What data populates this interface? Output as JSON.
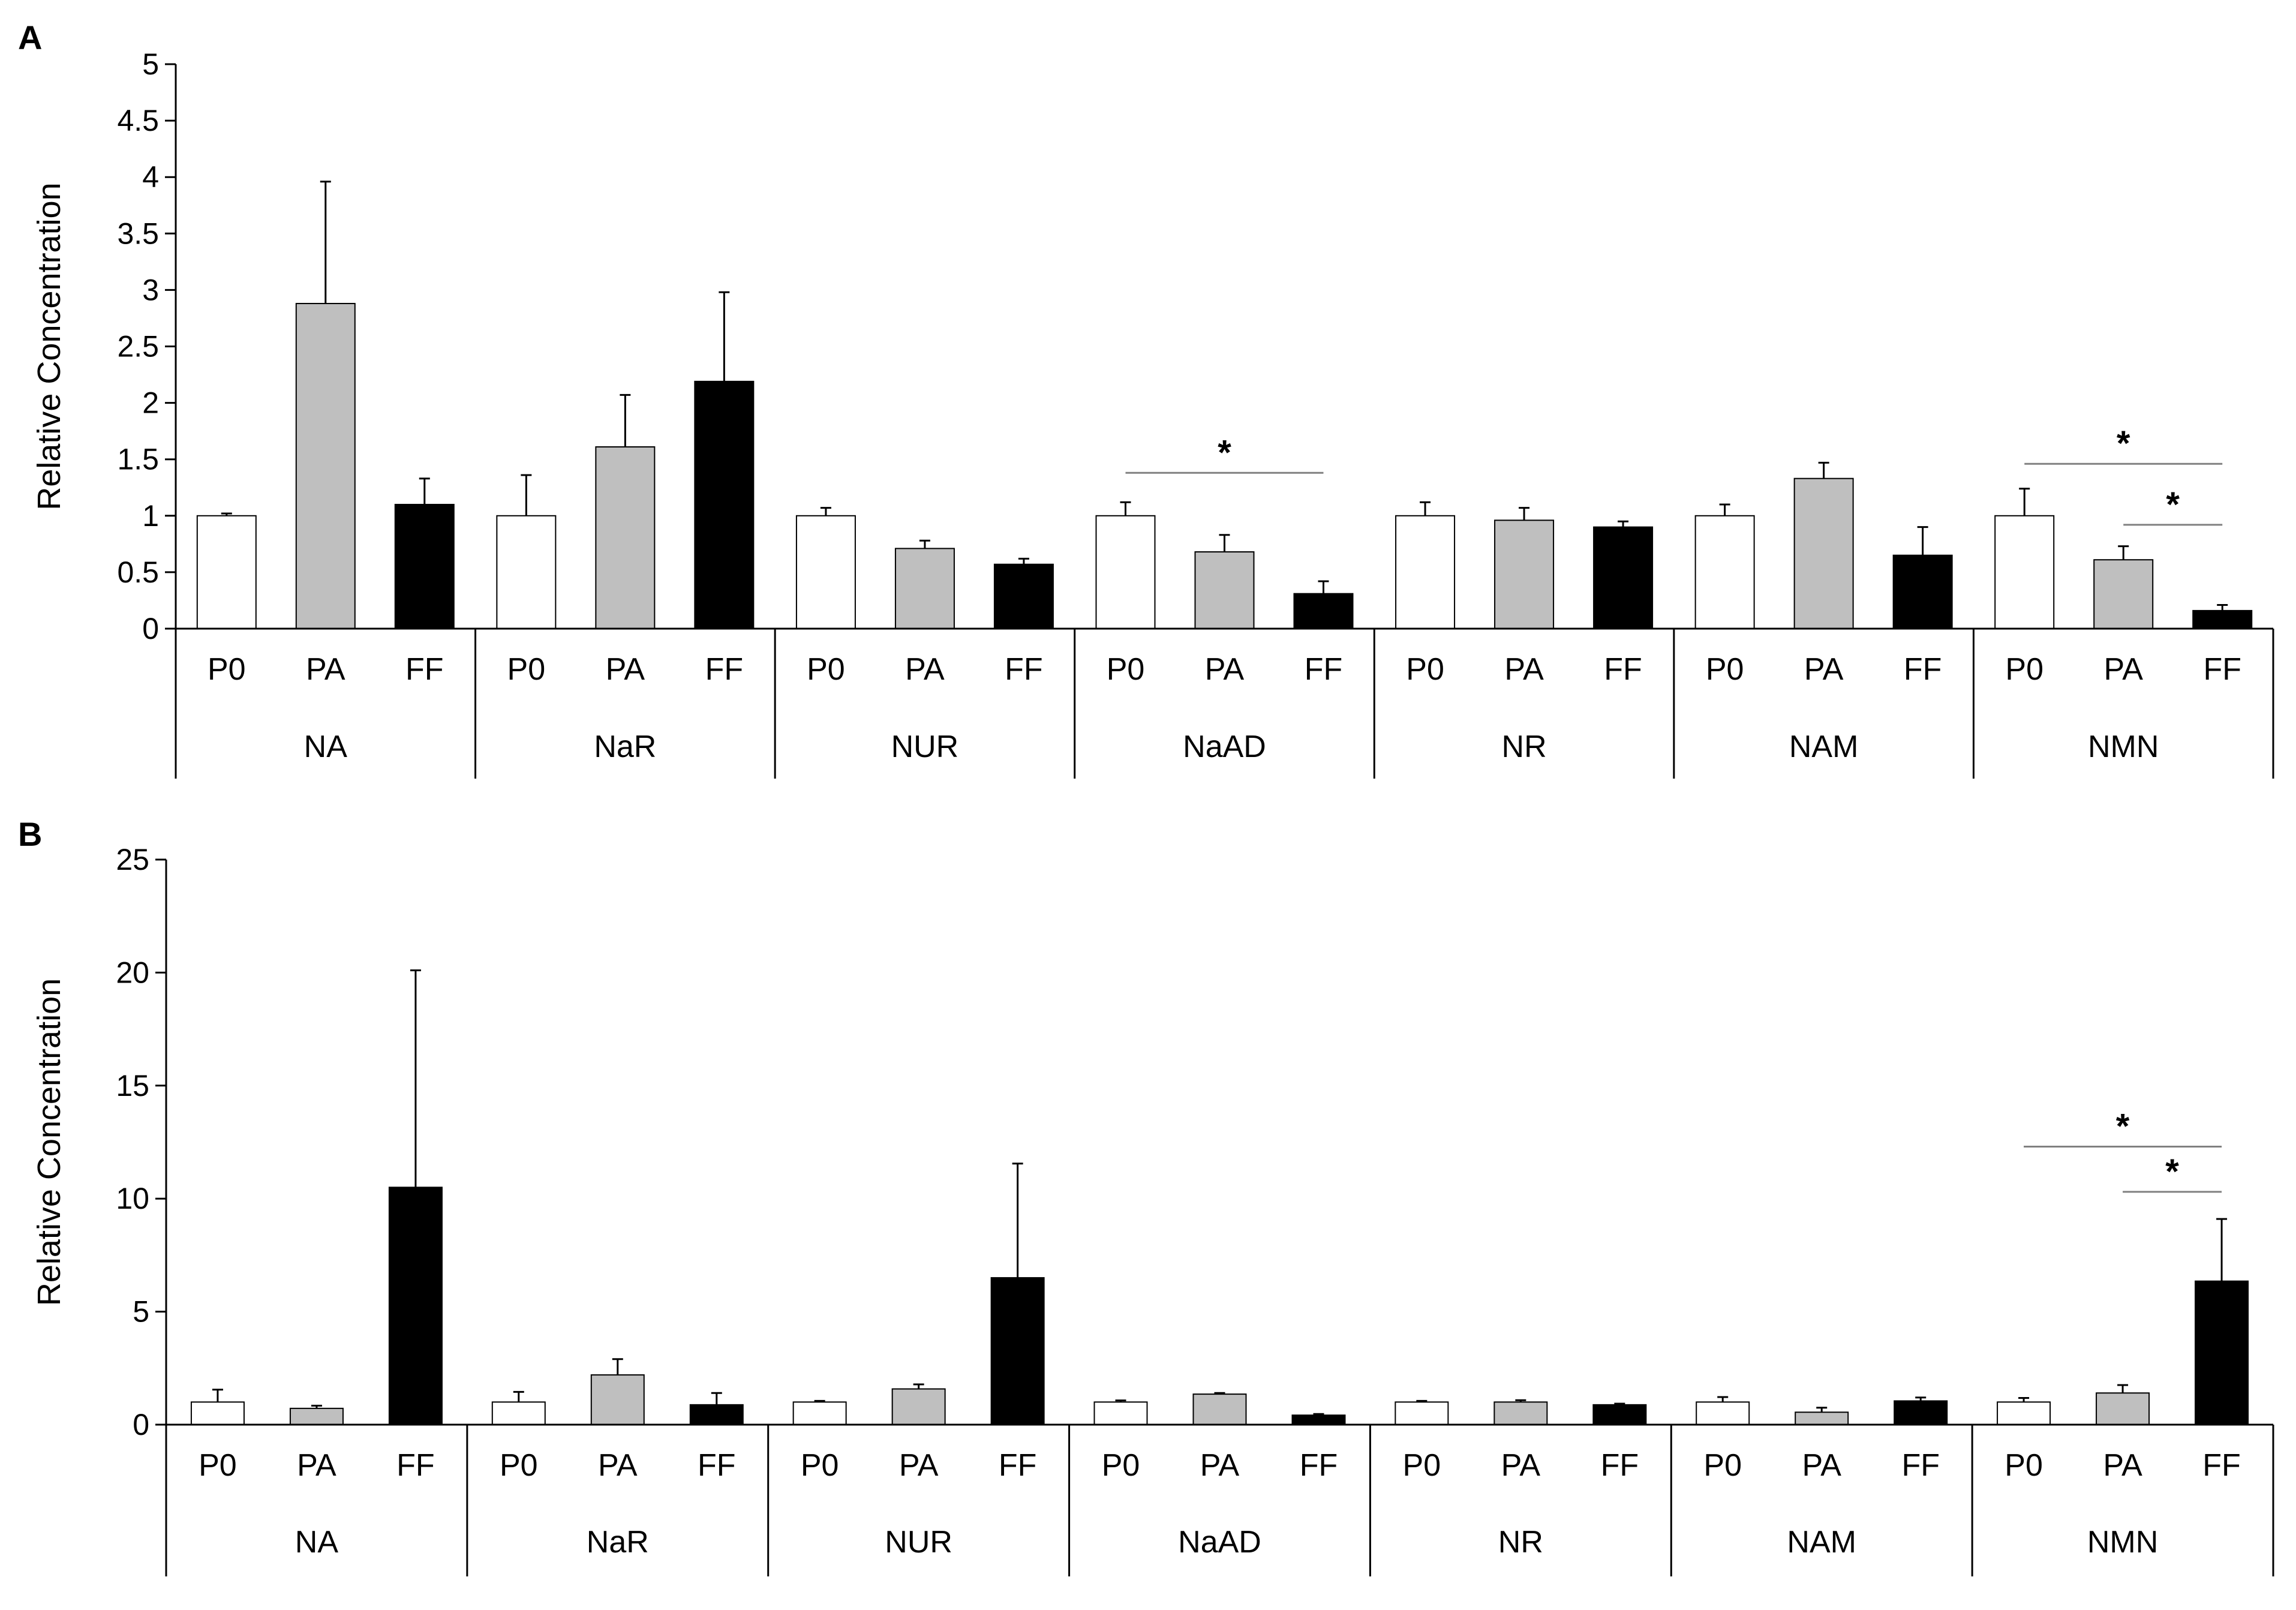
{
  "chart_data": [
    {
      "panel": "A",
      "type": "bar",
      "ylabel": "Relative Concentration",
      "ylim": [
        0,
        5
      ],
      "yticks": [
        "0",
        "0.5",
        "1",
        "1.5",
        "2",
        "2.5",
        "3",
        "3.5",
        "4",
        "4.5",
        "5"
      ],
      "groups": [
        "NA",
        "NaR",
        "NUR",
        "NaAD",
        "NR",
        "NAM",
        "NMN"
      ],
      "series": [
        {
          "name": "P0",
          "color": "#ffffff",
          "values": [
            1.0,
            1.0,
            1.0,
            1.0,
            1.0,
            1.0,
            1.0
          ],
          "errors": [
            0.02,
            0.36,
            0.07,
            0.12,
            0.12,
            0.1,
            0.24
          ]
        },
        {
          "name": "PA",
          "color": "#bfbfbf",
          "values": [
            2.88,
            1.61,
            0.71,
            0.68,
            0.96,
            1.33,
            0.61
          ],
          "errors": [
            1.08,
            0.46,
            0.07,
            0.15,
            0.11,
            0.14,
            0.12
          ]
        },
        {
          "name": "FF",
          "color": "#000000",
          "values": [
            1.1,
            2.19,
            0.57,
            0.31,
            0.9,
            0.65,
            0.16
          ],
          "errors": [
            0.23,
            0.79,
            0.05,
            0.11,
            0.05,
            0.25,
            0.05
          ]
        }
      ],
      "significance": [
        {
          "group": "NaAD",
          "from": "P0",
          "to": "FF",
          "label": "*",
          "y": 1.38
        },
        {
          "group": "NMN",
          "from": "P0",
          "to": "FF",
          "label": "*",
          "y": 1.46
        },
        {
          "group": "NMN",
          "from": "PA",
          "to": "FF",
          "label": "*",
          "y": 0.92
        }
      ]
    },
    {
      "panel": "B",
      "type": "bar",
      "ylabel": "Relative Concentration",
      "ylim": [
        0,
        25
      ],
      "yticks": [
        "0",
        "5",
        "10",
        "15",
        "20",
        "25"
      ],
      "groups": [
        "NA",
        "NaR",
        "NUR",
        "NaAD",
        "NR",
        "NAM",
        "NMN"
      ],
      "series": [
        {
          "name": "P0",
          "color": "#ffffff",
          "values": [
            1.0,
            1.0,
            1.0,
            1.0,
            1.0,
            1.0,
            1.0
          ],
          "errors": [
            0.55,
            0.45,
            0.05,
            0.07,
            0.05,
            0.22,
            0.18
          ]
        },
        {
          "name": "PA",
          "color": "#bfbfbf",
          "values": [
            0.72,
            2.2,
            1.58,
            1.35,
            1.0,
            0.55,
            1.4
          ],
          "errors": [
            0.12,
            0.7,
            0.2,
            0.05,
            0.08,
            0.2,
            0.35
          ]
        },
        {
          "name": "FF",
          "color": "#000000",
          "values": [
            10.5,
            0.88,
            6.5,
            0.42,
            0.88,
            1.05,
            6.35
          ],
          "errors": [
            9.6,
            0.52,
            5.05,
            0.05,
            0.05,
            0.15,
            2.75
          ]
        }
      ],
      "significance": [
        {
          "group": "NMN",
          "from": "P0",
          "to": "FF",
          "label": "*",
          "y": 12.3
        },
        {
          "group": "NMN",
          "from": "PA",
          "to": "FF",
          "label": "*",
          "y": 10.3
        }
      ]
    }
  ]
}
